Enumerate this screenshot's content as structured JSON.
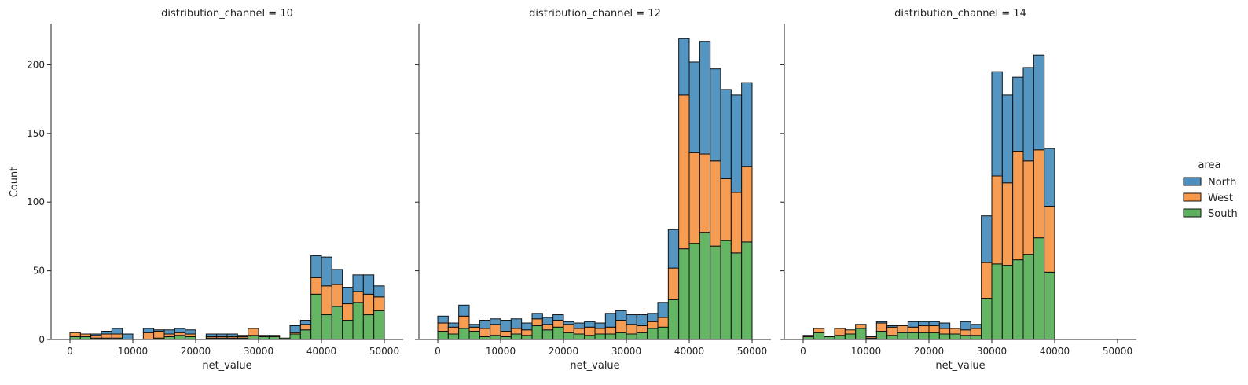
{
  "chart_data": {
    "type": "bar",
    "stacked": true,
    "ylabel": "Count",
    "xlabel": "net_value",
    "ylim": [
      0,
      230
    ],
    "xlim": [
      -3000,
      53000
    ],
    "yticks": [
      0,
      50,
      100,
      150,
      200
    ],
    "xticks": [
      0,
      10000,
      20000,
      30000,
      40000,
      50000
    ],
    "bin_width": 1666.67,
    "legend": {
      "title": "area",
      "placement": "right",
      "entries": [
        {
          "name": "North",
          "color": "#4c8fbf"
        },
        {
          "name": "West",
          "color": "#f7984a"
        },
        {
          "name": "South",
          "color": "#5cb15c"
        }
      ]
    },
    "panels": [
      {
        "title": "distribution_channel = 10",
        "bin_starts": [
          0,
          1667,
          3333,
          5000,
          6667,
          8333,
          10000,
          11667,
          13333,
          15000,
          16667,
          18333,
          20000,
          21667,
          23333,
          25000,
          26667,
          28333,
          30000,
          31667,
          33333,
          35000,
          36667,
          38333,
          40000,
          41667,
          43333,
          45000,
          46667,
          48333
        ],
        "series": [
          {
            "name": "South",
            "values": [
              2,
              2,
              1,
              1,
              1,
              0,
              0,
              0,
              1,
              2,
              3,
              2,
              0,
              1,
              1,
              1,
              1,
              3,
              2,
              2,
              1,
              4,
              7,
              33,
              18,
              24,
              14,
              27,
              18,
              21
            ]
          },
          {
            "name": "West",
            "values": [
              3,
              2,
              2,
              3,
              3,
              0,
              0,
              5,
              5,
              2,
              2,
              2,
              0,
              1,
              1,
              1,
              1,
              5,
              1,
              1,
              0,
              1,
              4,
              12,
              21,
              16,
              12,
              8,
              15,
              10
            ]
          },
          {
            "name": "North",
            "values": [
              0,
              0,
              1,
              2,
              4,
              4,
              0,
              3,
              1,
              3,
              3,
              3,
              0,
              2,
              2,
              2,
              1,
              0,
              0,
              0,
              0,
              5,
              3,
              16,
              21,
              11,
              12,
              12,
              14,
              8
            ]
          }
        ]
      },
      {
        "title": "distribution_channel = 12",
        "bin_starts": [
          0,
          1667,
          3333,
          5000,
          6667,
          8333,
          10000,
          11667,
          13333,
          15000,
          16667,
          18333,
          20000,
          21667,
          23333,
          25000,
          26667,
          28333,
          30000,
          31667,
          33333,
          35000,
          36667,
          38333,
          40000,
          41667,
          43333,
          45000,
          46667,
          48333
        ],
        "series": [
          {
            "name": "South",
            "values": [
              6,
              4,
              8,
              6,
              2,
              3,
              2,
              4,
              3,
              10,
              7,
              9,
              5,
              4,
              3,
              4,
              4,
              5,
              4,
              5,
              8,
              9,
              29,
              66,
              70,
              78,
              68,
              72,
              63,
              71
            ]
          },
          {
            "name": "West",
            "values": [
              6,
              5,
              9,
              3,
              6,
              8,
              4,
              4,
              4,
              5,
              4,
              5,
              6,
              4,
              6,
              4,
              5,
              9,
              7,
              5,
              5,
              7,
              23,
              112,
              66,
              57,
              62,
              45,
              44,
              55
            ]
          },
          {
            "name": "North",
            "values": [
              5,
              3,
              8,
              2,
              6,
              4,
              8,
              7,
              5,
              4,
              5,
              4,
              2,
              4,
              4,
              4,
              10,
              7,
              7,
              8,
              6,
              11,
              28,
              41,
              66,
              82,
              67,
              65,
              71,
              61
            ]
          }
        ]
      },
      {
        "title": "distribution_channel = 14",
        "bin_starts": [
          0,
          1667,
          3333,
          5000,
          6667,
          8333,
          10000,
          11667,
          13333,
          15000,
          16667,
          18333,
          20000,
          21667,
          23333,
          25000,
          26667,
          28333,
          30000,
          31667,
          33333,
          35000,
          36667,
          38333,
          40000,
          41667,
          43333,
          45000,
          46667,
          48333
        ],
        "series": [
          {
            "name": "South",
            "values": [
              2,
              5,
              2,
              3,
              4,
              8,
              1,
              6,
              3,
              5,
              5,
              5,
              5,
              4,
              4,
              3,
              3,
              30,
              55,
              54,
              58,
              62,
              74,
              49,
              0,
              0,
              0,
              0,
              0,
              0
            ]
          },
          {
            "name": "West",
            "values": [
              1,
              3,
              0,
              5,
              3,
              3,
              1,
              6,
              6,
              5,
              4,
              5,
              5,
              4,
              4,
              4,
              5,
              26,
              64,
              60,
              79,
              68,
              64,
              48,
              0,
              0,
              0,
              0,
              0,
              0
            ]
          },
          {
            "name": "North",
            "values": [
              0,
              0,
              0,
              0,
              0,
              0,
              0,
              1,
              1,
              0,
              4,
              3,
              3,
              4,
              0,
              6,
              3,
              34,
              76,
              64,
              54,
              68,
              69,
              42,
              0,
              0,
              0,
              0,
              0,
              0
            ]
          }
        ]
      }
    ]
  }
}
